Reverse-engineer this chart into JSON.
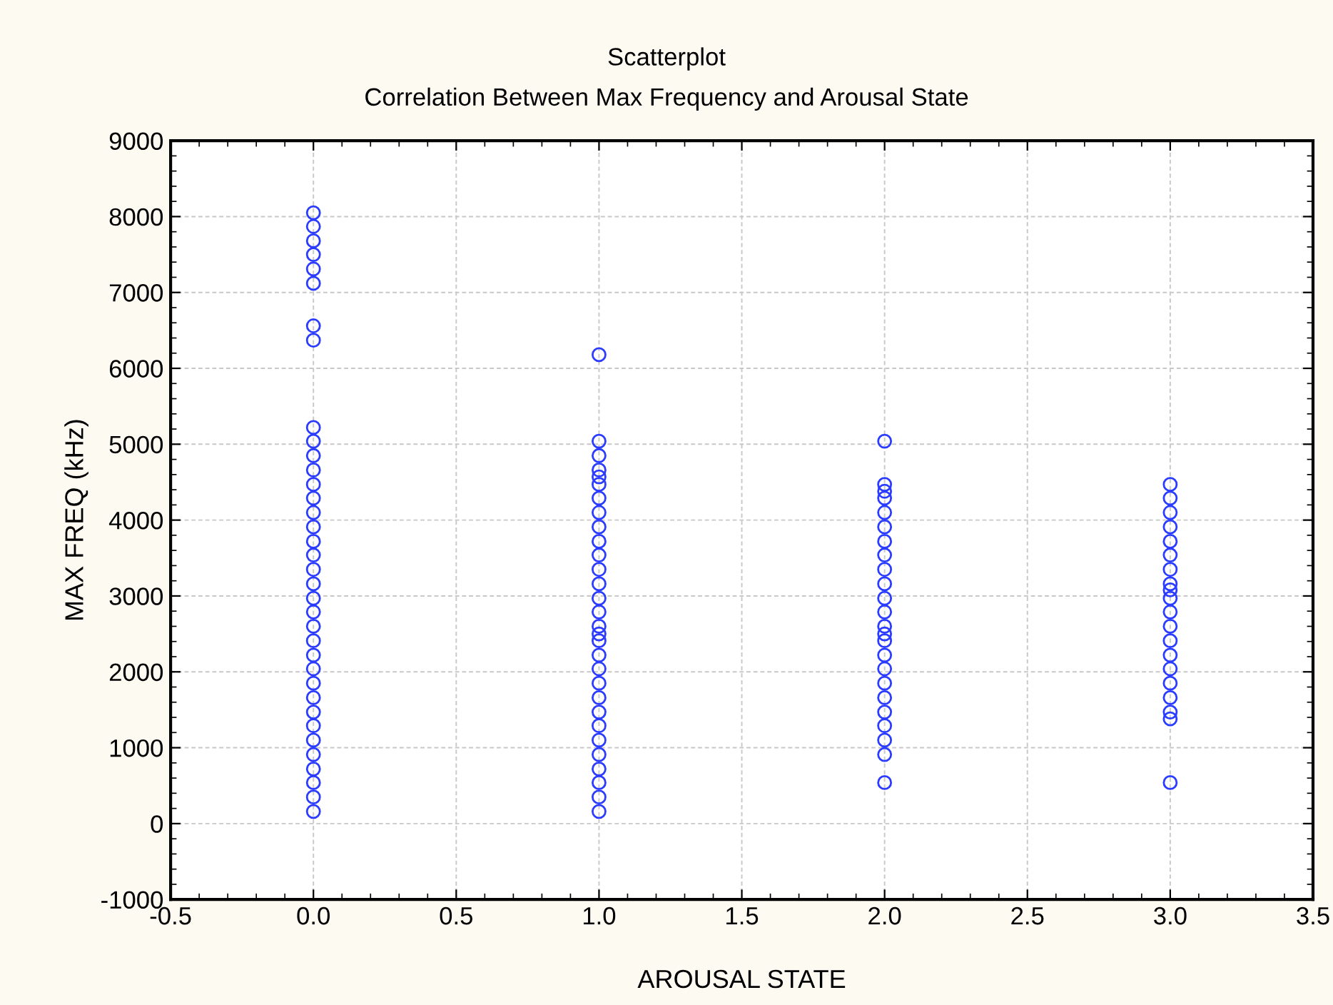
{
  "chart_data": {
    "type": "scatter",
    "title": "Scatterplot",
    "subtitle": "Correlation Between Max Frequency and Arousal State",
    "xlabel": "AROUSAL STATE",
    "ylabel": "MAX FREQ (kHz)",
    "xlim": [
      -0.5,
      3.5
    ],
    "xticks": [
      {
        "value": -0.5,
        "label": "-0.5"
      },
      {
        "value": 0,
        "label": "0.0"
      },
      {
        "value": 0.5,
        "label": "0.5"
      },
      {
        "value": 1,
        "label": "1.0"
      },
      {
        "value": 1.5,
        "label": "1.5"
      },
      {
        "value": 2,
        "label": "2.0"
      },
      {
        "value": 2.5,
        "label": "2.5"
      },
      {
        "value": 3,
        "label": "3.0"
      },
      {
        "value": 3.5,
        "label": "3.5"
      }
    ],
    "ylim": [
      -1000,
      9000
    ],
    "yticks": [
      -1000,
      0,
      1000,
      2000,
      3000,
      4000,
      5000,
      6000,
      7000,
      8000,
      9000
    ],
    "grid": true,
    "marker": "circle",
    "series": [
      {
        "color": "#2b3cff",
        "x": [
          0,
          0,
          0,
          0,
          0,
          0,
          0,
          0,
          0,
          0,
          0,
          0,
          0,
          0,
          0,
          0,
          0,
          0,
          0,
          0,
          0,
          0,
          0,
          0,
          0,
          0,
          0,
          0,
          0,
          0,
          0,
          0,
          0,
          0,
          0,
          0
        ],
        "values": [
          8050,
          7870,
          7680,
          7500,
          7310,
          7120,
          6560,
          6370,
          5220,
          5040,
          4850,
          4660,
          4470,
          4290,
          4100,
          3910,
          3720,
          3540,
          3350,
          3160,
          2970,
          2790,
          2600,
          2410,
          2220,
          2040,
          1850,
          1660,
          1470,
          1290,
          1100,
          910,
          720,
          540,
          350,
          160
        ]
      },
      {
        "color": "#2b3cff",
        "x": [
          1,
          1,
          1,
          1,
          1,
          1,
          1,
          1,
          1,
          1,
          1,
          1,
          1,
          1,
          1,
          1,
          1,
          1,
          1,
          1,
          1,
          1,
          1,
          1,
          1,
          1,
          1,
          1,
          1,
          1
        ],
        "values": [
          6180,
          5040,
          4850,
          4660,
          4570,
          4470,
          4290,
          4100,
          3910,
          3720,
          3540,
          3350,
          3160,
          2970,
          2790,
          2600,
          2500,
          2410,
          2220,
          2040,
          1850,
          1660,
          1470,
          1290,
          1100,
          910,
          720,
          540,
          350,
          160
        ]
      },
      {
        "color": "#2b3cff",
        "x": [
          2,
          2,
          2,
          2,
          2,
          2,
          2,
          2,
          2,
          2,
          2,
          2,
          2,
          2,
          2,
          2,
          2,
          2,
          2,
          2,
          2,
          2,
          2,
          2
        ],
        "values": [
          5040,
          4470,
          4380,
          4290,
          4100,
          3910,
          3720,
          3540,
          3350,
          3160,
          2970,
          2790,
          2600,
          2500,
          2410,
          2220,
          2040,
          1850,
          1660,
          1470,
          1290,
          1100,
          910,
          540
        ]
      },
      {
        "color": "#2b3cff",
        "x": [
          3,
          3,
          3,
          3,
          3,
          3,
          3,
          3,
          3,
          3,
          3,
          3,
          3,
          3,
          3,
          3,
          3,
          3,
          3,
          3
        ],
        "values": [
          4470,
          4290,
          4100,
          3910,
          3720,
          3540,
          3350,
          3160,
          3080,
          2970,
          2790,
          2600,
          2410,
          2220,
          2040,
          1850,
          1660,
          1470,
          1380,
          540
        ]
      }
    ]
  }
}
